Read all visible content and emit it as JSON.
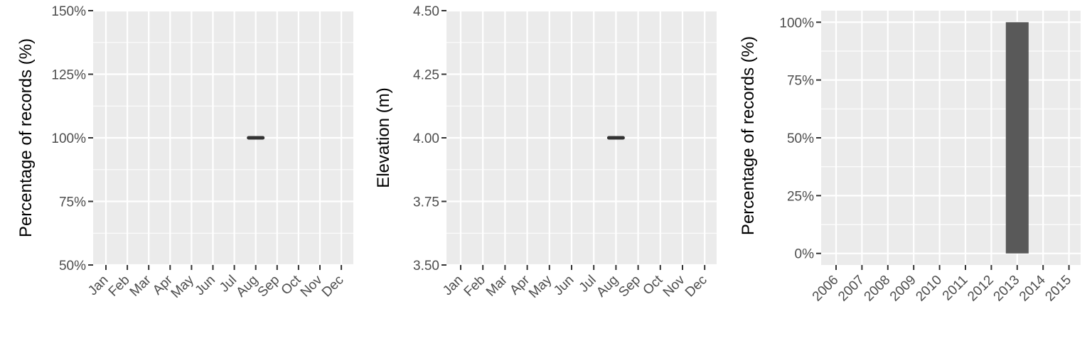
{
  "chart_data": [
    {
      "type": "line",
      "panel": "monthly-percentage",
      "ylabel": "Percentage of records (%)",
      "xlabel": "",
      "categories": [
        "Jan",
        "Feb",
        "Mar",
        "Apr",
        "May",
        "Jun",
        "Jul",
        "Aug",
        "Sep",
        "Oct",
        "Nov",
        "Dec"
      ],
      "yticks": [
        50,
        75,
        100,
        125,
        150
      ],
      "ytick_labels": [
        "50%",
        "75%",
        "100%",
        "125%",
        "150%"
      ],
      "ylim": [
        50,
        150
      ],
      "grid": true,
      "series": [
        {
          "points": [
            {
              "x": "Aug",
              "y": 100
            }
          ]
        }
      ]
    },
    {
      "type": "line",
      "panel": "monthly-elevation",
      "ylabel": "Elevation (m)",
      "xlabel": "",
      "categories": [
        "Jan",
        "Feb",
        "Mar",
        "Apr",
        "May",
        "Jun",
        "Jul",
        "Aug",
        "Sep",
        "Oct",
        "Nov",
        "Dec"
      ],
      "yticks": [
        3.5,
        3.75,
        4.0,
        4.25,
        4.5
      ],
      "ytick_labels": [
        "3.50",
        "3.75",
        "4.00",
        "4.25",
        "4.50"
      ],
      "ylim": [
        3.5,
        4.5
      ],
      "grid": true,
      "series": [
        {
          "points": [
            {
              "x": "Aug",
              "y": 4.0
            }
          ]
        }
      ]
    },
    {
      "type": "bar",
      "panel": "yearly-percentage",
      "ylabel": "Percentage of records (%)",
      "xlabel": "",
      "categories": [
        "2006",
        "2007",
        "2008",
        "2009",
        "2010",
        "2011",
        "2012",
        "2013",
        "2014",
        "2015"
      ],
      "values": [
        0,
        0,
        0,
        0,
        0,
        0,
        0,
        100,
        0,
        0
      ],
      "yticks": [
        0,
        25,
        50,
        75,
        100
      ],
      "ytick_labels": [
        "0%",
        "25%",
        "50%",
        "75%",
        "100%"
      ],
      "ylim": [
        -5,
        105
      ],
      "grid": true,
      "bar_color": "#595959"
    }
  ]
}
